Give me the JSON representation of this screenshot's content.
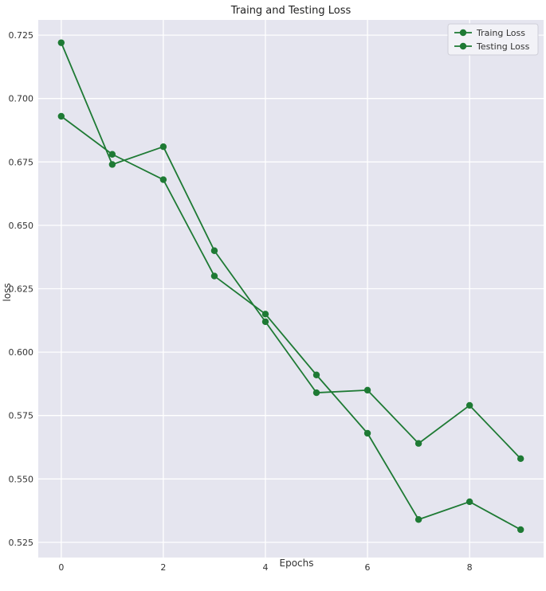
{
  "chart_data": {
    "type": "line",
    "title": "Traing and Testing Loss",
    "xlabel": "Epochs",
    "ylabel": "loss",
    "x": [
      0,
      1,
      2,
      3,
      4,
      5,
      6,
      7,
      8,
      9
    ],
    "xlim": [
      -0.45,
      9.45
    ],
    "ylim": [
      0.519,
      0.731
    ],
    "xticks": [
      0,
      2,
      4,
      6,
      8
    ],
    "yticks": [
      0.525,
      0.55,
      0.575,
      0.6,
      0.625,
      0.65,
      0.675,
      0.7,
      0.725
    ],
    "grid": true,
    "legend_position": "top-right",
    "series": [
      {
        "name": "Traing Loss",
        "values": [
          0.722,
          0.674,
          0.681,
          0.64,
          0.612,
          0.584,
          0.585,
          0.564,
          0.579,
          0.558
        ]
      },
      {
        "name": "Testing Loss",
        "values": [
          0.693,
          0.678,
          0.668,
          0.63,
          0.615,
          0.591,
          0.568,
          0.534,
          0.541,
          0.53
        ]
      }
    ],
    "colors": {
      "plot_background": "#e5e5ef",
      "grid": "#ffffff",
      "line": "#1e7a34",
      "text": "#333333"
    }
  }
}
